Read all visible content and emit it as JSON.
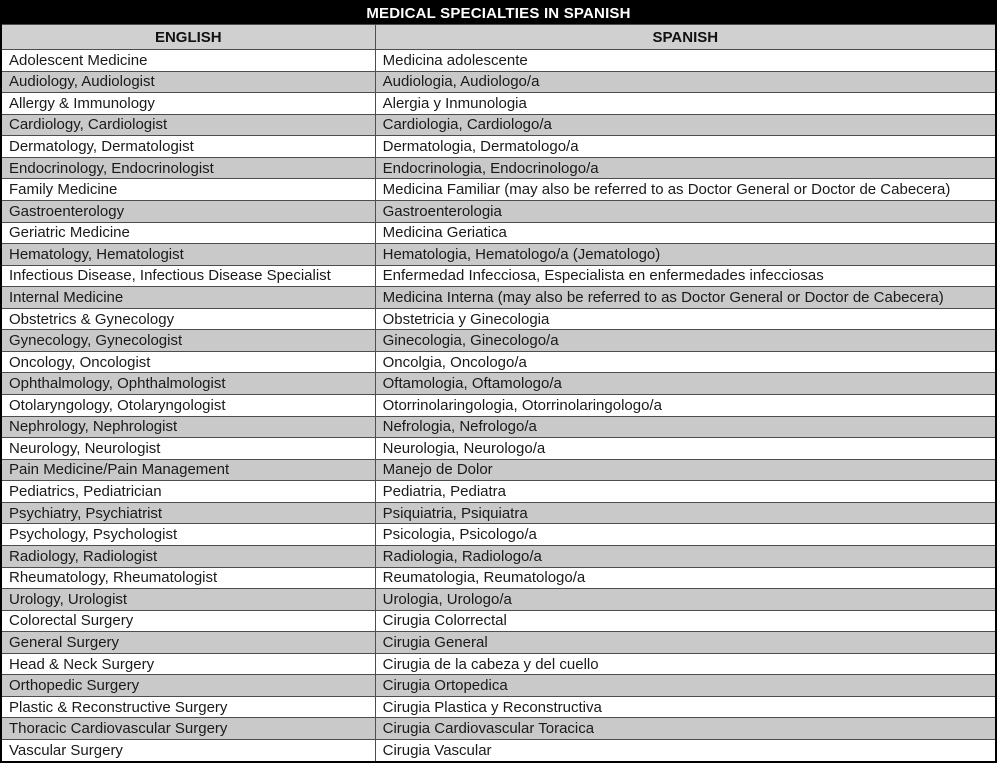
{
  "table": {
    "title": "MEDICAL SPECIALTIES IN SPANISH",
    "columns": [
      "ENGLISH",
      "SPANISH"
    ],
    "rows": [
      [
        "Adolescent Medicine",
        "Medicina adolescente"
      ],
      [
        "Audiology, Audiologist",
        "Audiologia, Audiologo/a"
      ],
      [
        "Allergy & Immunology",
        "Alergia y Inmunologia"
      ],
      [
        "Cardiology, Cardiologist",
        "Cardiologia, Cardiologo/a"
      ],
      [
        "Dermatology, Dermatologist",
        "Dermatologia, Dermatologo/a"
      ],
      [
        "Endocrinology, Endocrinologist",
        "Endocrinologia, Endocrinologo/a"
      ],
      [
        "Family Medicine",
        "Medicina Familiar (may also be referred to as Doctor General or Doctor de Cabecera)"
      ],
      [
        "Gastroenterology",
        "Gastroenterologia"
      ],
      [
        "Geriatric Medicine",
        "Medicina Geriatica"
      ],
      [
        "Hematology, Hematologist",
        "Hematologia, Hematologo/a (Jematologo)"
      ],
      [
        "Infectious Disease, Infectious Disease Specialist",
        "Enfermedad Infecciosa, Especialista en enfermedades infecciosas"
      ],
      [
        "Internal Medicine",
        "Medicina Interna (may also be referred to as Doctor General or Doctor de Cabecera)"
      ],
      [
        "Obstetrics & Gynecology",
        "Obstetricia y Ginecologia"
      ],
      [
        "Gynecology, Gynecologist",
        "Ginecologia, Ginecologo/a"
      ],
      [
        "Oncology, Oncologist",
        "Oncolgia, Oncologo/a"
      ],
      [
        "Ophthalmology, Ophthalmologist",
        "Oftamologia, Oftamologo/a"
      ],
      [
        "Otolaryngology, Otolaryngologist",
        "Otorrinolaringologia, Otorrinolaringologo/a"
      ],
      [
        "Nephrology, Nephrologist",
        "Nefrologia, Nefrologo/a"
      ],
      [
        "Neurology, Neurologist",
        "Neurologia, Neurologo/a"
      ],
      [
        "Pain Medicine/Pain Management",
        "Manejo de Dolor"
      ],
      [
        "Pediatrics, Pediatrician",
        "Pediatria, Pediatra"
      ],
      [
        "Psychiatry, Psychiatrist",
        "Psiquiatria, Psiquiatra"
      ],
      [
        "Psychology, Psychologist",
        "Psicologia, Psicologo/a"
      ],
      [
        "Radiology, Radiologist",
        "Radiologia, Radiologo/a"
      ],
      [
        "Rheumatology, Rheumatologist",
        "Reumatologia, Reumatologo/a"
      ],
      [
        "Urology, Urologist",
        "Urologia, Urologo/a"
      ],
      [
        "Colorectal Surgery",
        "Cirugia Colorrectal"
      ],
      [
        "General Surgery",
        "Cirugia General"
      ],
      [
        "Head & Neck Surgery",
        "Cirugia de la cabeza y del cuello"
      ],
      [
        "Orthopedic Surgery",
        "Cirugia Ortopedica"
      ],
      [
        "Plastic & Reconstructive Surgery",
        "Cirugia Plastica y Reconstructiva"
      ],
      [
        "Thoracic Cardiovascular Surgery",
        "Cirugia Cardiovascular Toracica"
      ],
      [
        "Vascular Surgery",
        "Cirugia Vascular"
      ]
    ]
  },
  "colors": {
    "title_bg": "#000000",
    "title_text": "#ffffff",
    "header_bg": "#d0d0d0",
    "header_text": "#111111",
    "row_bg": "#ffffff",
    "row_alt_bg": "#c9c9c9",
    "cell_text": "#1a1a1a",
    "outer_border": "#000000",
    "inner_border": "#4d4d4d"
  }
}
